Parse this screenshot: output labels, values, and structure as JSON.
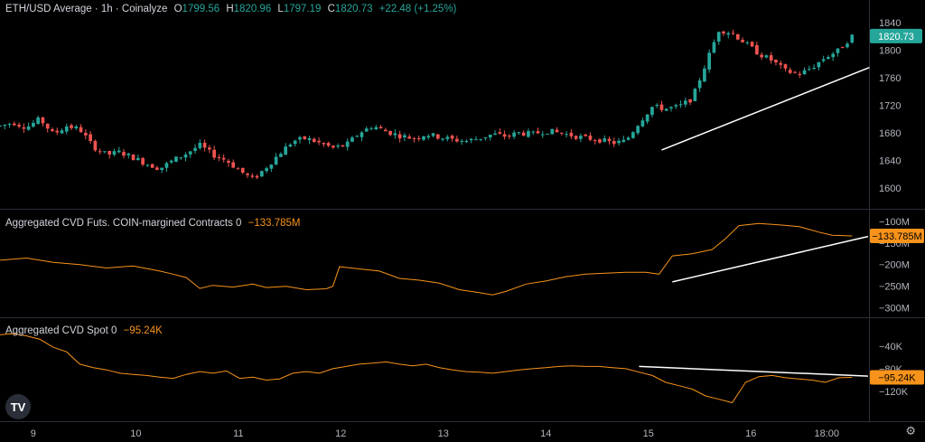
{
  "header": {
    "symbol": "ETH/USD Average · 1h · Coinalyze",
    "ohlc": [
      {
        "label": "O",
        "value": "1799.56"
      },
      {
        "label": "H",
        "value": "1820.96"
      },
      {
        "label": "L",
        "value": "1797.19"
      },
      {
        "label": "C",
        "value": "1820.73"
      }
    ],
    "change": "+22.48 (+1.25%)"
  },
  "colors": {
    "up": "#26a69a",
    "down": "#ef5350",
    "cvd": "#f7931a",
    "trend": "#ffffff"
  },
  "logo_text": "TV",
  "settings_icon": "gear-icon",
  "chart_data": [
    {
      "type": "candlestick",
      "title": "ETH/USD Average · 1h · Coinalyze",
      "ylim": [
        1580,
        1860
      ],
      "yticks": [
        1600,
        1640,
        1680,
        1720,
        1760,
        1800,
        1840
      ],
      "last_value_label": "1820.73",
      "close_path": [
        [
          0,
          1690
        ],
        [
          10,
          1695
        ],
        [
          20,
          1688
        ],
        [
          30,
          1700
        ],
        [
          40,
          1678
        ],
        [
          50,
          1690
        ],
        [
          60,
          1685
        ],
        [
          70,
          1660
        ],
        [
          80,
          1648
        ],
        [
          90,
          1652
        ],
        [
          100,
          1644
        ],
        [
          110,
          1635
        ],
        [
          120,
          1628
        ],
        [
          130,
          1640
        ],
        [
          140,
          1650
        ],
        [
          150,
          1662
        ],
        [
          160,
          1648
        ],
        [
          170,
          1640
        ],
        [
          180,
          1625
        ],
        [
          190,
          1612
        ],
        [
          200,
          1630
        ],
        [
          210,
          1650
        ],
        [
          220,
          1668
        ],
        [
          230,
          1672
        ],
        [
          240,
          1665
        ],
        [
          250,
          1658
        ],
        [
          260,
          1662
        ],
        [
          270,
          1680
        ],
        [
          280,
          1690
        ],
        [
          290,
          1682
        ],
        [
          300,
          1676
        ],
        [
          310,
          1672
        ],
        [
          320,
          1678
        ],
        [
          330,
          1674
        ],
        [
          340,
          1670
        ],
        [
          350,
          1668
        ],
        [
          360,
          1672
        ],
        [
          370,
          1678
        ],
        [
          380,
          1675
        ],
        [
          390,
          1680
        ],
        [
          400,
          1678
        ],
        [
          410,
          1683
        ],
        [
          420,
          1680
        ],
        [
          430,
          1676
        ],
        [
          440,
          1672
        ],
        [
          450,
          1670
        ],
        [
          460,
          1665
        ],
        [
          470,
          1668
        ],
        [
          480,
          1695
        ],
        [
          490,
          1718
        ],
        [
          500,
          1715
        ],
        [
          510,
          1718
        ],
        [
          520,
          1730
        ],
        [
          530,
          1780
        ],
        [
          540,
          1830
        ],
        [
          550,
          1825
        ],
        [
          560,
          1810
        ],
        [
          570,
          1795
        ],
        [
          580,
          1785
        ],
        [
          590,
          1770
        ],
        [
          600,
          1765
        ],
        [
          610,
          1775
        ],
        [
          620,
          1790
        ],
        [
          630,
          1800
        ],
        [
          640,
          1820.73
        ]
      ],
      "candle_count": 180,
      "trendline": {
        "from": [
          497,
          1655
        ],
        "to": [
          653,
          1775
        ]
      }
    },
    {
      "type": "line",
      "title": "Aggregated CVD Futs. COIN-margined Contracts 0",
      "last_value_label": "−133.785M",
      "ylim": [
        -305,
        -92
      ],
      "ytick_labels": [
        {
          "value": -100,
          "label": "−100M"
        },
        {
          "value": -150,
          "label": "−150M"
        },
        {
          "value": -200,
          "label": "−200M"
        },
        {
          "value": -250,
          "label": "−250M"
        },
        {
          "value": -300,
          "label": "−300M"
        }
      ],
      "series": [
        {
          "values": [
            [
              0,
              -190
            ],
            [
              20,
              -185
            ],
            [
              40,
              -195
            ],
            [
              60,
              -200
            ],
            [
              80,
              -208
            ],
            [
              100,
              -203
            ],
            [
              120,
              -215
            ],
            [
              130,
              -222
            ],
            [
              140,
              -230
            ],
            [
              150,
              -255
            ],
            [
              160,
              -248
            ],
            [
              175,
              -252
            ],
            [
              190,
              -245
            ],
            [
              200,
              -253
            ],
            [
              215,
              -250
            ],
            [
              230,
              -258
            ],
            [
              245,
              -256
            ],
            [
              250,
              -250
            ],
            [
              255,
              -205
            ],
            [
              270,
              -210
            ],
            [
              285,
              -215
            ],
            [
              300,
              -232
            ],
            [
              315,
              -236
            ],
            [
              330,
              -243
            ],
            [
              345,
              -258
            ],
            [
              360,
              -265
            ],
            [
              370,
              -270
            ],
            [
              380,
              -262
            ],
            [
              395,
              -245
            ],
            [
              410,
              -238
            ],
            [
              425,
              -228
            ],
            [
              440,
              -222
            ],
            [
              455,
              -220
            ],
            [
              470,
              -218
            ],
            [
              485,
              -218
            ],
            [
              495,
              -222
            ],
            [
              505,
              -180
            ],
            [
              520,
              -175
            ],
            [
              535,
              -165
            ],
            [
              545,
              -140
            ],
            [
              555,
              -110
            ],
            [
              570,
              -105
            ],
            [
              585,
              -108
            ],
            [
              600,
              -112
            ],
            [
              615,
              -125
            ],
            [
              625,
              -132
            ],
            [
              640,
              -133.785
            ]
          ]
        }
      ],
      "trendline": {
        "from": [
          505,
          -240
        ],
        "to": [
          652,
          -135
        ]
      }
    },
    {
      "type": "line",
      "title": "Aggregated CVD Spot 0",
      "last_value_label": "−95.24K",
      "ylim": [
        -160,
        -5
      ],
      "ytick_labels": [
        {
          "value": -40,
          "label": "−40K"
        },
        {
          "value": -80,
          "label": "−80K"
        },
        {
          "value": -120,
          "label": "−120K"
        }
      ],
      "series": [
        {
          "values": [
            [
              0,
              -20
            ],
            [
              10,
              -18
            ],
            [
              20,
              -22
            ],
            [
              30,
              -28
            ],
            [
              40,
              -42
            ],
            [
              50,
              -50
            ],
            [
              60,
              -72
            ],
            [
              70,
              -78
            ],
            [
              80,
              -82
            ],
            [
              90,
              -88
            ],
            [
              100,
              -90
            ],
            [
              110,
              -92
            ],
            [
              120,
              -95
            ],
            [
              130,
              -97
            ],
            [
              140,
              -90
            ],
            [
              150,
              -85
            ],
            [
              160,
              -88
            ],
            [
              170,
              -84
            ],
            [
              180,
              -97
            ],
            [
              190,
              -95
            ],
            [
              200,
              -100
            ],
            [
              210,
              -98
            ],
            [
              220,
              -88
            ],
            [
              230,
              -85
            ],
            [
              240,
              -88
            ],
            [
              250,
              -80
            ],
            [
              260,
              -76
            ],
            [
              270,
              -72
            ],
            [
              280,
              -70
            ],
            [
              290,
              -68
            ],
            [
              300,
              -72
            ],
            [
              310,
              -75
            ],
            [
              320,
              -72
            ],
            [
              330,
              -78
            ],
            [
              340,
              -82
            ],
            [
              350,
              -85
            ],
            [
              360,
              -86
            ],
            [
              370,
              -88
            ],
            [
              380,
              -85
            ],
            [
              390,
              -82
            ],
            [
              400,
              -80
            ],
            [
              410,
              -78
            ],
            [
              420,
              -76
            ],
            [
              430,
              -75
            ],
            [
              440,
              -76
            ],
            [
              450,
              -76
            ],
            [
              460,
              -78
            ],
            [
              470,
              -80
            ],
            [
              480,
              -86
            ],
            [
              490,
              -92
            ],
            [
              500,
              -104
            ],
            [
              510,
              -110
            ],
            [
              520,
              -116
            ],
            [
              530,
              -128
            ],
            [
              540,
              -134
            ],
            [
              550,
              -140
            ],
            [
              560,
              -104
            ],
            [
              570,
              -94
            ],
            [
              580,
              -92
            ],
            [
              590,
              -96
            ],
            [
              600,
              -98
            ],
            [
              610,
              -100
            ],
            [
              620,
              -104
            ],
            [
              630,
              -96
            ],
            [
              640,
              -95.24
            ]
          ]
        }
      ],
      "trendline": {
        "from": [
          480,
          -76
        ],
        "to": [
          652,
          -93
        ]
      }
    }
  ],
  "xaxis": {
    "ticks": [
      {
        "x": 25,
        "label": "9"
      },
      {
        "x": 102,
        "label": "10"
      },
      {
        "x": 179,
        "label": "11"
      },
      {
        "x": 256,
        "label": "12"
      },
      {
        "x": 333,
        "label": "13"
      },
      {
        "x": 410,
        "label": "14"
      },
      {
        "x": 487,
        "label": "15"
      },
      {
        "x": 564,
        "label": "16"
      },
      {
        "x": 621,
        "label": "18:00"
      }
    ],
    "range": [
      0,
      650
    ]
  }
}
